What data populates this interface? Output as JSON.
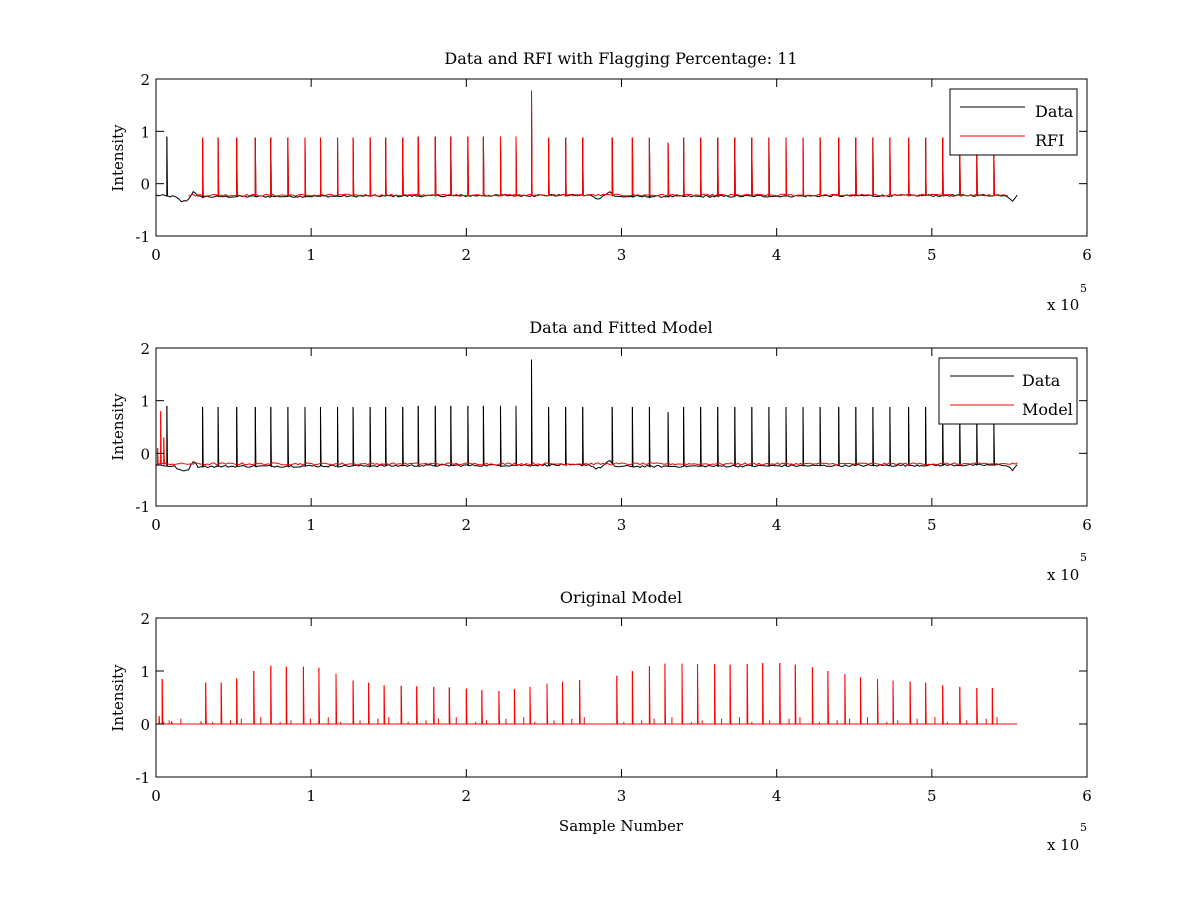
{
  "figure": {
    "background": "#ffffff",
    "colors": {
      "data": "#000000",
      "rfi": "#ff0000",
      "model": "#ff0000",
      "axes": "#000000"
    }
  },
  "chart_data": [
    {
      "type": "line",
      "title": "Data and RFI with Flagging Percentage: 11",
      "xlabel": "",
      "ylabel": "Intensity",
      "xlim": [
        0,
        600000
      ],
      "ylim": [
        -1,
        2
      ],
      "xticks": [
        0,
        1,
        2,
        3,
        4,
        5,
        6
      ],
      "yticks": [
        -1,
        0,
        1,
        2
      ],
      "x_exponent": {
        "base": "x 10",
        "power": "5"
      },
      "legend": {
        "position": "top-right",
        "entries": [
          "Data",
          "RFI"
        ]
      },
      "grid": false,
      "series": [
        {
          "name": "Data",
          "color": "#000000",
          "baseline": -0.22,
          "x_range": [
            0,
            556000
          ],
          "dips": [
            [
              0,
              -0.22
            ],
            [
              8000,
              -0.24
            ],
            [
              12000,
              -0.25
            ],
            [
              17000,
              -0.35
            ],
            [
              21000,
              -0.3
            ],
            [
              24000,
              -0.14
            ],
            [
              27000,
              -0.25
            ],
            [
              280000,
              -0.22
            ],
            [
              284000,
              -0.3
            ],
            [
              288000,
              -0.24
            ],
            [
              292000,
              -0.14
            ],
            [
              296000,
              -0.25
            ],
            [
              548000,
              -0.22
            ],
            [
              552000,
              -0.32
            ],
            [
              556000,
              -0.2
            ],
            [
              559000,
              -0.1
            ],
            [
              561000,
              -0.2
            ]
          ],
          "spikes": [
            [
              7000,
              0.9
            ],
            [
              30000,
              0.88
            ],
            [
              40000,
              0.88
            ],
            [
              52000,
              0.88
            ],
            [
              64000,
              0.88
            ],
            [
              74000,
              0.88
            ],
            [
              85000,
              0.88
            ],
            [
              96000,
              0.88
            ],
            [
              106000,
              0.88
            ],
            [
              117000,
              0.88
            ],
            [
              127000,
              0.88
            ],
            [
              138000,
              0.88
            ],
            [
              148000,
              0.88
            ],
            [
              159000,
              0.88
            ],
            [
              169000,
              0.9
            ],
            [
              180000,
              0.9
            ],
            [
              190000,
              0.9
            ],
            [
              201000,
              0.9
            ],
            [
              211000,
              0.9
            ],
            [
              222000,
              0.9
            ],
            [
              232000,
              0.9
            ],
            [
              242000,
              1.78
            ],
            [
              253000,
              0.88
            ],
            [
              264000,
              0.88
            ],
            [
              275000,
              0.88
            ],
            [
              294000,
              0.88
            ],
            [
              307000,
              0.88
            ],
            [
              318000,
              0.88
            ],
            [
              330000,
              0.78
            ],
            [
              340000,
              0.88
            ],
            [
              351000,
              0.88
            ],
            [
              362000,
              0.88
            ],
            [
              373000,
              0.88
            ],
            [
              384000,
              0.88
            ],
            [
              395000,
              0.88
            ],
            [
              406000,
              0.88
            ],
            [
              417000,
              0.88
            ],
            [
              428000,
              0.88
            ],
            [
              440000,
              0.88
            ],
            [
              451000,
              0.88
            ],
            [
              462000,
              0.88
            ],
            [
              473000,
              0.88
            ],
            [
              485000,
              0.88
            ],
            [
              496000,
              0.88
            ],
            [
              507000,
              0.88
            ],
            [
              518000,
              0.7
            ],
            [
              529000,
              0.7
            ],
            [
              540000,
              0.6
            ]
          ]
        },
        {
          "name": "RFI",
          "color": "#ff0000",
          "baseline": -0.22,
          "x_range": [
            21000,
            550000
          ],
          "spikes": [
            [
              30000,
              0.88
            ],
            [
              40000,
              0.88
            ],
            [
              52000,
              0.88
            ],
            [
              64000,
              0.88
            ],
            [
              74000,
              0.88
            ],
            [
              85000,
              0.88
            ],
            [
              96000,
              0.88
            ],
            [
              106000,
              0.88
            ],
            [
              117000,
              0.88
            ],
            [
              127000,
              0.88
            ],
            [
              138000,
              0.88
            ],
            [
              148000,
              0.88
            ],
            [
              159000,
              0.88
            ],
            [
              169000,
              0.9
            ],
            [
              180000,
              0.9
            ],
            [
              190000,
              0.9
            ],
            [
              201000,
              0.9
            ],
            [
              211000,
              0.9
            ],
            [
              222000,
              0.9
            ],
            [
              232000,
              0.9
            ],
            [
              242000,
              1.78
            ],
            [
              253000,
              0.88
            ],
            [
              264000,
              0.88
            ],
            [
              275000,
              0.88
            ],
            [
              294000,
              0.88
            ],
            [
              307000,
              0.88
            ],
            [
              318000,
              0.88
            ],
            [
              330000,
              0.78
            ],
            [
              340000,
              0.88
            ],
            [
              351000,
              0.88
            ],
            [
              362000,
              0.88
            ],
            [
              373000,
              0.88
            ],
            [
              384000,
              0.88
            ],
            [
              395000,
              0.88
            ],
            [
              406000,
              0.88
            ],
            [
              417000,
              0.88
            ],
            [
              428000,
              0.88
            ],
            [
              440000,
              0.88
            ],
            [
              451000,
              0.88
            ],
            [
              462000,
              0.88
            ],
            [
              473000,
              0.88
            ],
            [
              485000,
              0.88
            ],
            [
              496000,
              0.88
            ],
            [
              507000,
              0.88
            ],
            [
              518000,
              0.7
            ],
            [
              529000,
              0.7
            ],
            [
              540000,
              0.6
            ]
          ]
        }
      ]
    },
    {
      "type": "line",
      "title": "Data and Fitted Model",
      "xlabel": "",
      "ylabel": "Intensity",
      "xlim": [
        0,
        600000
      ],
      "ylim": [
        -1,
        2
      ],
      "xticks": [
        0,
        1,
        2,
        3,
        4,
        5,
        6
      ],
      "yticks": [
        -1,
        0,
        1,
        2
      ],
      "x_exponent": {
        "base": "x 10",
        "power": "5"
      },
      "legend": {
        "position": "top-right",
        "entries": [
          "Data",
          "Model"
        ]
      },
      "grid": false,
      "series": [
        {
          "name": "Data",
          "color": "#000000",
          "baseline": -0.22,
          "x_range": [
            0,
            556000
          ],
          "dips": [
            [
              0,
              -0.22
            ],
            [
              8000,
              -0.24
            ],
            [
              12000,
              -0.25
            ],
            [
              17000,
              -0.35
            ],
            [
              21000,
              -0.3
            ],
            [
              24000,
              -0.14
            ],
            [
              27000,
              -0.25
            ],
            [
              280000,
              -0.22
            ],
            [
              284000,
              -0.3
            ],
            [
              288000,
              -0.24
            ],
            [
              292000,
              -0.14
            ],
            [
              296000,
              -0.25
            ],
            [
              548000,
              -0.22
            ],
            [
              552000,
              -0.32
            ],
            [
              556000,
              -0.2
            ],
            [
              559000,
              -0.1
            ],
            [
              561000,
              -0.2
            ]
          ],
          "spikes": [
            [
              7000,
              0.9
            ],
            [
              30000,
              0.88
            ],
            [
              40000,
              0.88
            ],
            [
              52000,
              0.88
            ],
            [
              64000,
              0.88
            ],
            [
              74000,
              0.88
            ],
            [
              85000,
              0.88
            ],
            [
              96000,
              0.88
            ],
            [
              106000,
              0.88
            ],
            [
              117000,
              0.88
            ],
            [
              127000,
              0.88
            ],
            [
              138000,
              0.88
            ],
            [
              148000,
              0.88
            ],
            [
              159000,
              0.88
            ],
            [
              169000,
              0.9
            ],
            [
              180000,
              0.9
            ],
            [
              190000,
              0.9
            ],
            [
              201000,
              0.9
            ],
            [
              211000,
              0.9
            ],
            [
              222000,
              0.9
            ],
            [
              232000,
              0.9
            ],
            [
              242000,
              1.78
            ],
            [
              253000,
              0.88
            ],
            [
              264000,
              0.88
            ],
            [
              275000,
              0.88
            ],
            [
              294000,
              0.88
            ],
            [
              307000,
              0.88
            ],
            [
              318000,
              0.88
            ],
            [
              330000,
              0.78
            ],
            [
              340000,
              0.88
            ],
            [
              351000,
              0.88
            ],
            [
              362000,
              0.88
            ],
            [
              373000,
              0.88
            ],
            [
              384000,
              0.88
            ],
            [
              395000,
              0.88
            ],
            [
              406000,
              0.88
            ],
            [
              417000,
              0.88
            ],
            [
              428000,
              0.88
            ],
            [
              440000,
              0.88
            ],
            [
              451000,
              0.88
            ],
            [
              462000,
              0.88
            ],
            [
              473000,
              0.88
            ],
            [
              485000,
              0.88
            ],
            [
              496000,
              0.88
            ],
            [
              507000,
              0.88
            ],
            [
              518000,
              0.7
            ],
            [
              529000,
              0.7
            ],
            [
              540000,
              0.6
            ]
          ]
        },
        {
          "name": "Model",
          "color": "#ff0000",
          "baseline": -0.2,
          "x_range": [
            0,
            556000
          ],
          "spikes": [
            [
              1000,
              0.1
            ],
            [
              3000,
              0.8
            ],
            [
              5000,
              0.3
            ]
          ]
        }
      ]
    },
    {
      "type": "line",
      "title": "Original Model",
      "xlabel": "Sample Number",
      "ylabel": "Intensity",
      "xlim": [
        0,
        600000
      ],
      "ylim": [
        -1,
        2
      ],
      "xticks": [
        0,
        1,
        2,
        3,
        4,
        5,
        6
      ],
      "yticks": [
        -1,
        0,
        1,
        2
      ],
      "x_exponent": {
        "base": "x 10",
        "power": "5"
      },
      "grid": false,
      "series": [
        {
          "color": "#ff0000",
          "baseline": 0,
          "x_range": [
            0,
            556000
          ],
          "spikes": [
            [
              2000,
              0.15
            ],
            [
              4000,
              0.85
            ],
            [
              10000,
              0.05
            ],
            [
              29000,
              0.05
            ],
            [
              32000,
              0.78
            ],
            [
              42000,
              0.78
            ],
            [
              52000,
              0.86
            ],
            [
              63000,
              1.0
            ],
            [
              74000,
              1.1
            ],
            [
              84000,
              1.08
            ],
            [
              95000,
              1.08
            ],
            [
              105000,
              1.06
            ],
            [
              116000,
              0.95
            ],
            [
              127000,
              0.82
            ],
            [
              137000,
              0.78
            ],
            [
              147000,
              0.73
            ],
            [
              158000,
              0.72
            ],
            [
              168000,
              0.71
            ],
            [
              179000,
              0.7
            ],
            [
              189000,
              0.69
            ],
            [
              200000,
              0.67
            ],
            [
              210000,
              0.64
            ],
            [
              221000,
              0.62
            ],
            [
              231000,
              0.66
            ],
            [
              241000,
              0.7
            ],
            [
              252000,
              0.76
            ],
            [
              262000,
              0.8
            ],
            [
              273000,
              0.83
            ],
            [
              297000,
              0.91
            ],
            [
              307000,
              1.0
            ],
            [
              318000,
              1.09
            ],
            [
              328000,
              1.14
            ],
            [
              339000,
              1.14
            ],
            [
              349000,
              1.13
            ],
            [
              360000,
              1.13
            ],
            [
              370000,
              1.12
            ],
            [
              381000,
              1.13
            ],
            [
              391000,
              1.15
            ],
            [
              402000,
              1.15
            ],
            [
              412000,
              1.12
            ],
            [
              423000,
              1.07
            ],
            [
              433000,
              1.0
            ],
            [
              444000,
              0.94
            ],
            [
              454000,
              0.88
            ],
            [
              465000,
              0.85
            ],
            [
              475000,
              0.82
            ],
            [
              486000,
              0.8
            ],
            [
              496000,
              0.78
            ],
            [
              507000,
              0.73
            ],
            [
              518000,
              0.7
            ],
            [
              529000,
              0.68
            ],
            [
              539000,
              0.68
            ]
          ]
        }
      ]
    }
  ]
}
